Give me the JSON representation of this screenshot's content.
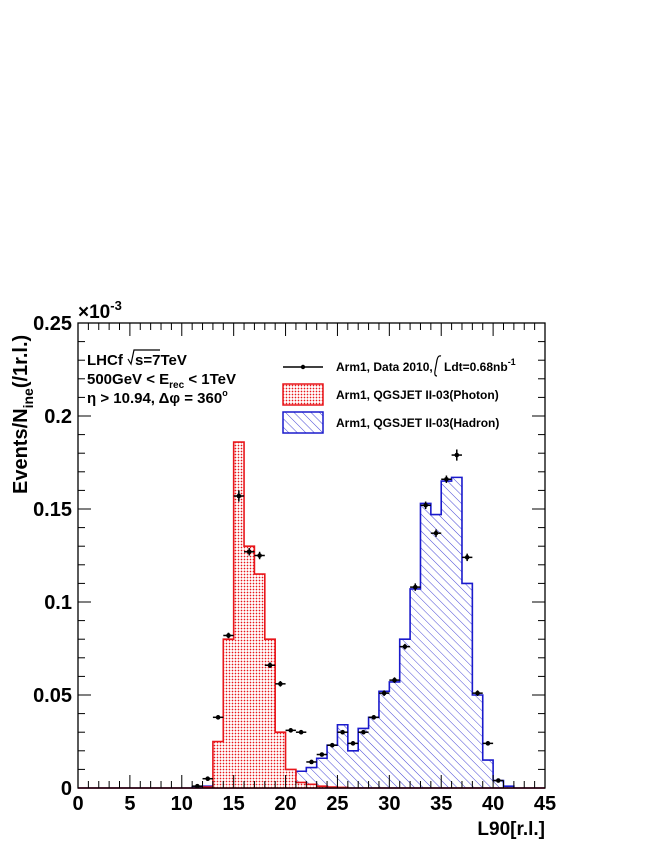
{
  "chart_data": {
    "type": "histogram",
    "xlabel": "L90[r.l.]",
    "ylabel": "Events/N_ine(/1r.l.)",
    "ylabel_main": "Events/N",
    "ylabel_sub": "ine",
    "ylabel_tail": "(/1r.l.)",
    "xlim": [
      0,
      45
    ],
    "ylim": [
      0,
      0.25
    ],
    "y_multiplier": "×10",
    "y_multiplier_exp": "-3",
    "x_ticks": [
      0,
      5,
      10,
      15,
      20,
      25,
      30,
      35,
      40,
      45
    ],
    "x_tick_labels": [
      "0",
      "5",
      "10",
      "15",
      "20",
      "25",
      "30",
      "35",
      "40",
      "45"
    ],
    "y_ticks": [
      0,
      0.05,
      0.1,
      0.15,
      0.2,
      0.25
    ],
    "y_tick_labels": [
      "0",
      "0.05",
      "0.1",
      "0.15",
      "0.2",
      "0.25"
    ],
    "annotation": {
      "line1_a": "LHCf",
      "line1_b": "s=7TeV",
      "line2_a": "500GeV < E",
      "line2_sub": "rec",
      "line2_b": " < 1TeV",
      "line3": "η > 10.94, Δφ = 360",
      "line3_sup": "o"
    },
    "legend": {
      "data_label_a": "Arm1, Data 2010,",
      "data_label_b": "Ldt=0.68nb",
      "data_label_sup": "-1",
      "photon_label": "Arm1, QGSJET II-03(Photon)",
      "hadron_label": "Arm1, QGSJET II-03(Hadron)"
    },
    "colors": {
      "photon": "#e8161b",
      "photon_fill": "#f4b0b0",
      "hadron": "#1a1acc",
      "data": "#000000"
    },
    "series": [
      {
        "name": "Arm1, QGSJET II-03(Photon)",
        "bin_edges": [
          0,
          1,
          2,
          3,
          4,
          5,
          6,
          7,
          8,
          9,
          10,
          11,
          12,
          13,
          14,
          15,
          16,
          17,
          18,
          19,
          20,
          21,
          22,
          23,
          24,
          25,
          26,
          27,
          28,
          29,
          30,
          31,
          32,
          33,
          34,
          35,
          36,
          37,
          38,
          39,
          40,
          41,
          42,
          43,
          44,
          45
        ],
        "values": [
          0,
          0,
          0,
          0,
          0,
          0,
          0,
          0,
          0,
          0,
          0,
          0,
          0.0005,
          0.025,
          0.08,
          0.186,
          0.13,
          0.115,
          0.08,
          0.03,
          0.01,
          0.003,
          0.002,
          0.001,
          0.0005,
          0.0003,
          0,
          0,
          0,
          0,
          0,
          0,
          0,
          0,
          0,
          0,
          0,
          0,
          0,
          0,
          0,
          0,
          0,
          0,
          0
        ]
      },
      {
        "name": "Arm1, QGSJET II-03(Hadron)",
        "bin_edges": [
          0,
          1,
          2,
          3,
          4,
          5,
          6,
          7,
          8,
          9,
          10,
          11,
          12,
          13,
          14,
          15,
          16,
          17,
          18,
          19,
          20,
          21,
          22,
          23,
          24,
          25,
          26,
          27,
          28,
          29,
          30,
          31,
          32,
          33,
          34,
          35,
          36,
          37,
          38,
          39,
          40,
          41,
          42,
          43,
          44,
          45
        ],
        "values": [
          0,
          0,
          0,
          0,
          0,
          0,
          0,
          0,
          0,
          0,
          0,
          0.0005,
          0.001,
          0.0015,
          0.002,
          0.003,
          0.0035,
          0.004,
          0.005,
          0.006,
          0.007,
          0.009,
          0.011,
          0.016,
          0.023,
          0.034,
          0.02,
          0.032,
          0.038,
          0.052,
          0.057,
          0.08,
          0.107,
          0.153,
          0.147,
          0.165,
          0.167,
          0.11,
          0.05,
          0.015,
          0.004,
          0.001,
          0,
          0,
          0
        ]
      },
      {
        "name": "Arm1, Data 2010",
        "x": [
          11.5,
          12.5,
          13.5,
          14.5,
          15.5,
          16.5,
          17.5,
          18.5,
          19.5,
          20.5,
          21.5,
          22.5,
          23.5,
          24.5,
          25.5,
          26.5,
          27.5,
          28.5,
          29.5,
          30.5,
          31.5,
          32.5,
          33.5,
          34.5,
          35.5,
          36.5,
          37.5,
          38.5,
          39.5,
          40.5
        ],
        "y": [
          0.001,
          0.005,
          0.038,
          0.082,
          0.157,
          0.127,
          0.125,
          0.066,
          0.056,
          0.031,
          0.03,
          0.014,
          0.018,
          0.023,
          0.03,
          0.024,
          0.03,
          0.038,
          0.051,
          0.058,
          0.076,
          0.108,
          0.152,
          0.137,
          0.166,
          0.179,
          0.124,
          0.051,
          0.024,
          0.004
        ],
        "yerr": [
          0.0005,
          0.001,
          0.001,
          0.0015,
          0.003,
          0.002,
          0.002,
          0.0015,
          0.0015,
          0.001,
          0.001,
          0.001,
          0.001,
          0.001,
          0.001,
          0.001,
          0.001,
          0.001,
          0.0015,
          0.0015,
          0.0015,
          0.002,
          0.002,
          0.002,
          0.002,
          0.003,
          0.002,
          0.0015,
          0.001,
          0.0005
        ]
      }
    ]
  }
}
